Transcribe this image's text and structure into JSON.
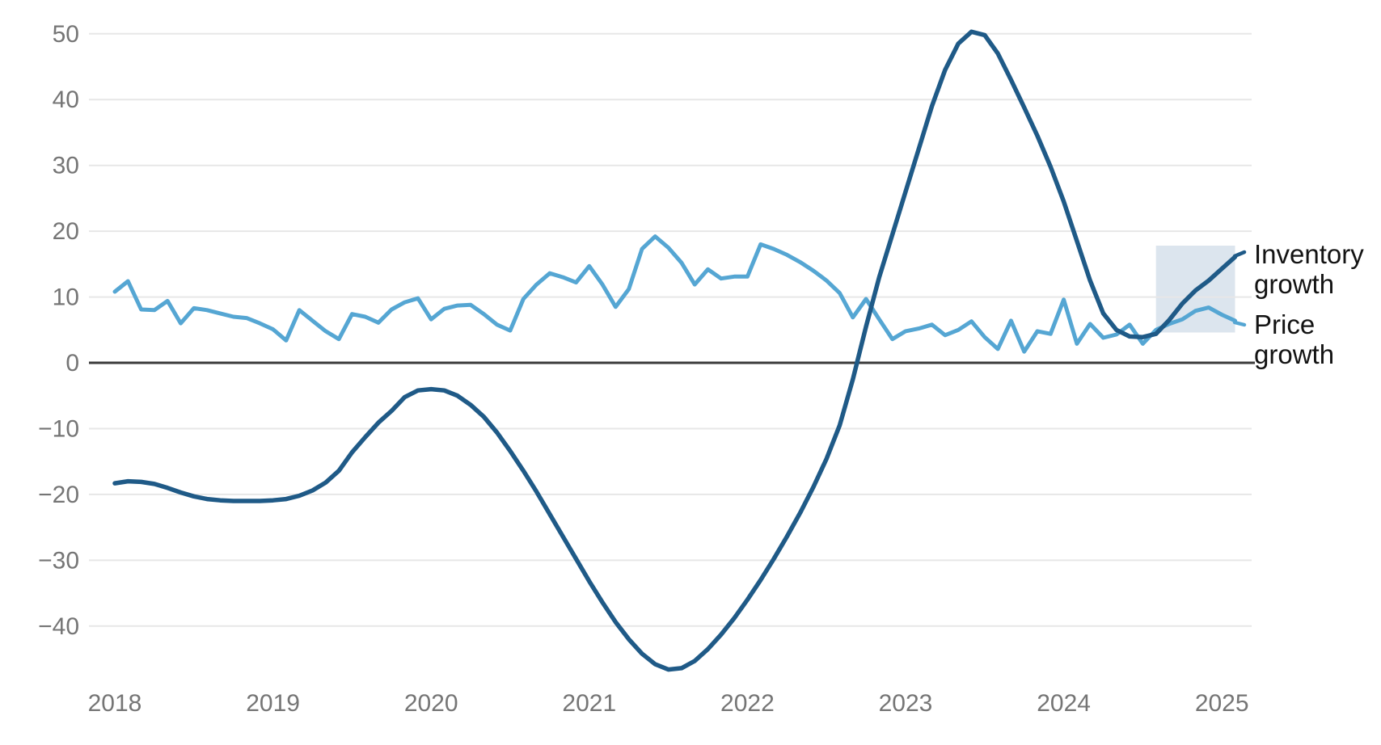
{
  "page": {
    "background": "#ffffff"
  },
  "chart_data": {
    "type": "line",
    "title": "",
    "xlabel": "",
    "ylabel": "",
    "grid": true,
    "legend_position": "right-of-line-ends",
    "y_axis": {
      "tick_values": [
        50,
        40,
        30,
        20,
        10,
        0,
        -10,
        -20,
        -30,
        -40
      ],
      "tick_labels": [
        "50",
        "40",
        "30",
        "20",
        "10",
        "0",
        "−10",
        "−20",
        "−30",
        "−40"
      ],
      "range": [
        -48,
        54
      ],
      "zero_line": true
    },
    "x_axis": {
      "tick_labels": [
        "2018",
        "2019",
        "2020",
        "2021",
        "2022",
        "2023",
        "2024",
        "2025"
      ],
      "tick_months": [
        "2018-01",
        "2019-01",
        "2020-01",
        "2021-01",
        "2022-01",
        "2023-01",
        "2024-01",
        "2025-01"
      ]
    },
    "months": [
      "2018-01",
      "2018-02",
      "2018-03",
      "2018-04",
      "2018-05",
      "2018-06",
      "2018-07",
      "2018-08",
      "2018-09",
      "2018-10",
      "2018-11",
      "2018-12",
      "2019-01",
      "2019-02",
      "2019-03",
      "2019-04",
      "2019-05",
      "2019-06",
      "2019-07",
      "2019-08",
      "2019-09",
      "2019-10",
      "2019-11",
      "2019-12",
      "2020-01",
      "2020-02",
      "2020-03",
      "2020-04",
      "2020-05",
      "2020-06",
      "2020-07",
      "2020-08",
      "2020-09",
      "2020-10",
      "2020-11",
      "2020-12",
      "2021-01",
      "2021-02",
      "2021-03",
      "2021-04",
      "2021-05",
      "2021-06",
      "2021-07",
      "2021-08",
      "2021-09",
      "2021-10",
      "2021-11",
      "2021-12",
      "2022-01",
      "2022-02",
      "2022-03",
      "2022-04",
      "2022-05",
      "2022-06",
      "2022-07",
      "2022-08",
      "2022-09",
      "2022-10",
      "2022-11",
      "2022-12",
      "2023-01",
      "2023-02",
      "2023-03",
      "2023-04",
      "2023-05",
      "2023-06",
      "2023-07",
      "2023-08",
      "2023-09",
      "2023-10",
      "2023-11",
      "2023-12",
      "2024-01",
      "2024-02",
      "2024-03",
      "2024-04",
      "2024-05",
      "2024-06",
      "2024-07",
      "2024-08",
      "2024-09",
      "2024-10",
      "2024-11",
      "2024-12",
      "2025-01",
      "2025-02"
    ],
    "series": [
      {
        "name": "Inventory growth",
        "color": "#1f5a87",
        "stroke_width": 5.5,
        "values": [
          -18.3,
          -18.0,
          -18.1,
          -18.4,
          -19.0,
          -19.7,
          -20.3,
          -20.7,
          -20.9,
          -21.0,
          -21.0,
          -21.0,
          -20.9,
          -20.7,
          -20.2,
          -19.4,
          -18.2,
          -16.4,
          -13.6,
          -11.3,
          -9.1,
          -7.3,
          -5.2,
          -4.2,
          -4.0,
          -4.2,
          -5.0,
          -6.4,
          -8.2,
          -10.6,
          -13.4,
          -16.4,
          -19.6,
          -23.0,
          -26.4,
          -29.8,
          -33.2,
          -36.4,
          -39.4,
          -42.0,
          -44.2,
          -45.8,
          -46.6,
          -46.4,
          -45.3,
          -43.5,
          -41.3,
          -38.8,
          -36.0,
          -33.0,
          -29.8,
          -26.4,
          -22.8,
          -18.9,
          -14.6,
          -9.5,
          -2.5,
          5.5,
          13.0,
          19.5,
          26.0,
          32.5,
          39.0,
          44.5,
          48.5,
          50.3,
          49.8,
          47.0,
          43.0,
          38.8,
          34.5,
          29.8,
          24.5,
          18.5,
          12.5,
          7.5,
          5.0,
          4.0,
          3.9,
          4.4,
          6.5,
          9.0,
          11.0,
          12.5,
          14.3,
          16.1
        ]
      },
      {
        "name": "Price growth",
        "color": "#55a6d3",
        "stroke_width": 5,
        "values": [
          10.8,
          12.4,
          8.1,
          8.0,
          9.4,
          6.0,
          8.3,
          8.0,
          7.5,
          7.0,
          6.8,
          6.0,
          5.1,
          3.4,
          8.0,
          6.4,
          4.8,
          3.6,
          7.4,
          7.0,
          6.1,
          8.1,
          9.2,
          9.8,
          6.6,
          8.2,
          8.7,
          8.8,
          7.4,
          5.8,
          4.9,
          9.7,
          11.9,
          13.6,
          13.0,
          12.2,
          14.7,
          11.9,
          8.5,
          11.2,
          17.3,
          19.2,
          17.5,
          15.2,
          11.9,
          14.2,
          12.8,
          13.1,
          13.1,
          18.0,
          17.3,
          16.4,
          15.3,
          14.0,
          12.5,
          10.6,
          6.9,
          9.7,
          6.6,
          3.6,
          4.8,
          5.2,
          5.8,
          4.2,
          5.0,
          6.3,
          3.9,
          2.1,
          6.4,
          1.7,
          4.8,
          4.4,
          9.6,
          2.9,
          5.9,
          3.8,
          4.3,
          5.8,
          2.9,
          5.0,
          5.9,
          6.6,
          7.9,
          8.4,
          7.3,
          6.4
        ]
      }
    ],
    "highlight_region": {
      "x_start_month": "2024-08",
      "x_end_month": "2025-02",
      "y_bottom": 4.6,
      "y_top": 17.8,
      "fill": "#dce5ee"
    },
    "colors": {
      "gridline": "#e7e7e7",
      "zero_line": "#3a3a3a",
      "axis_text": "#757575",
      "legend_text": "#131313"
    }
  }
}
